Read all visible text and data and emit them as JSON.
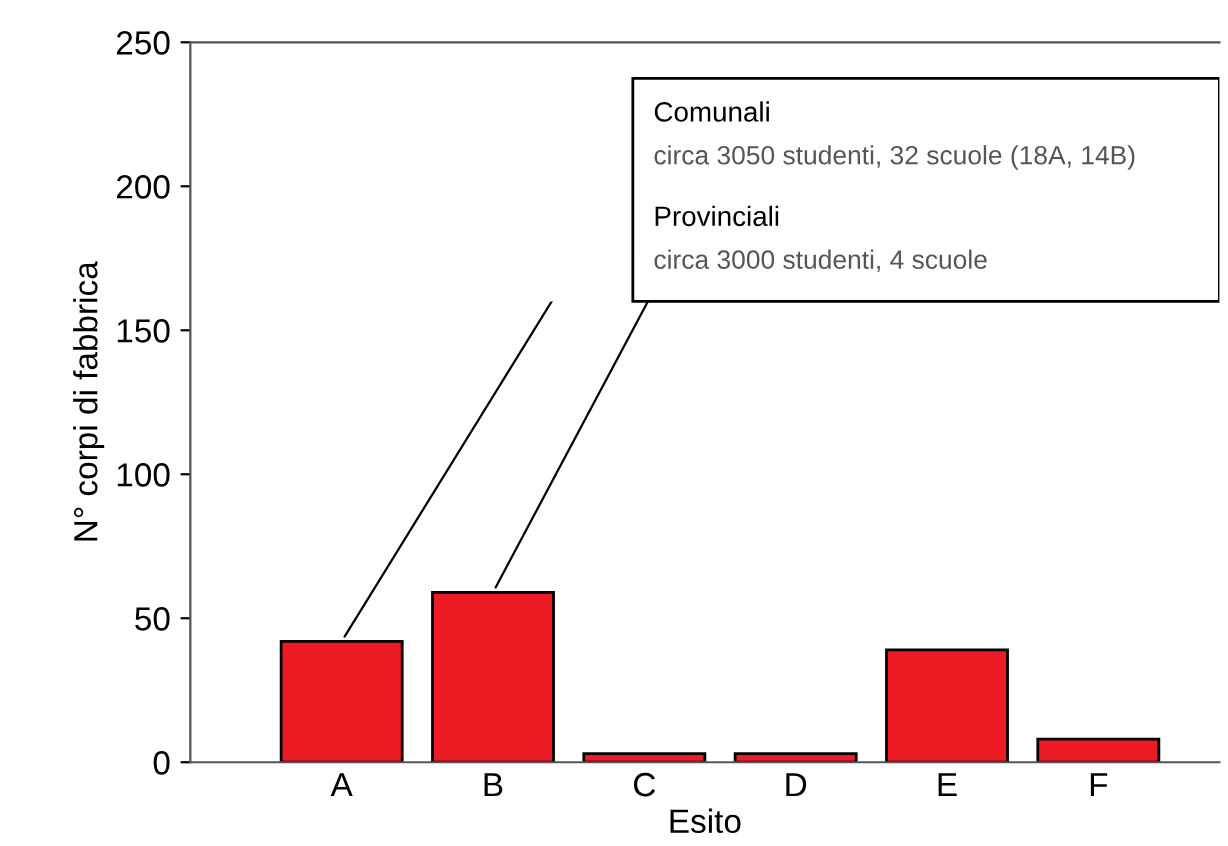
{
  "chart_data": {
    "type": "bar",
    "xlabel": "Esito",
    "ylabel": "N° corpi di fabbrica",
    "categories": [
      "A",
      "B",
      "C",
      "D",
      "E",
      "F"
    ],
    "values": [
      42,
      59,
      3,
      3,
      39,
      8
    ],
    "color": "#ed1c24",
    "ylim": [
      0,
      250
    ],
    "yticks": [
      0,
      50,
      100,
      150,
      200,
      250
    ],
    "grid": false,
    "legend": false,
    "annotations": [
      {
        "text": "Comunali",
        "x": "A",
        "y": 42
      },
      "circa 3050 studenti, 32 scuole (18A, 14B)",
      {
        "text": "Provinciali",
        "x": "B",
        "y": 59
      },
      "circa 3000 studenti, 4 scuole"
    ]
  }
}
